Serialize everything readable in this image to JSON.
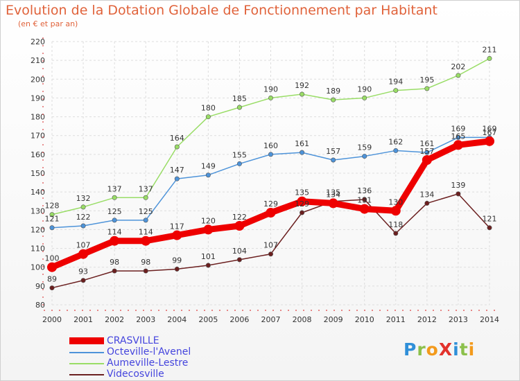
{
  "title": "Evolution de la Dotation Globale de Fonctionnement par Habitant",
  "subtitle": "(en € et par an)",
  "logo": "ProXiti",
  "chart_data": {
    "type": "line",
    "title": "Evolution de la Dotation Globale de Fonctionnement par Habitant",
    "subtitle": "(en € et par an)",
    "x": [
      "2000",
      "2001",
      "2002",
      "2003",
      "2004",
      "2005",
      "2006",
      "2007",
      "2008",
      "2009",
      "2010",
      "2011",
      "2012",
      "2013",
      "2014"
    ],
    "ylim": [
      80,
      220
    ],
    "yticks": [
      80,
      90,
      100,
      110,
      120,
      130,
      140,
      150,
      160,
      170,
      180,
      190,
      200,
      210,
      220
    ],
    "grid": true,
    "legend_position": "bottom-left",
    "series": [
      {
        "name": "CRASVILLE",
        "color": "#ee0000",
        "values": [
          100,
          107,
          114,
          114,
          117,
          120,
          122,
          129,
          135,
          134,
          131,
          130,
          157,
          165,
          167
        ]
      },
      {
        "name": "Octeville-l'Avenel",
        "color": "#4d93d9",
        "values": [
          121,
          122,
          125,
          125,
          147,
          149,
          155,
          160,
          161,
          157,
          159,
          162,
          161,
          169,
          169
        ]
      },
      {
        "name": "Aumeville-Lestre",
        "color": "#99dd66",
        "values": [
          128,
          132,
          137,
          137,
          164,
          180,
          185,
          190,
          192,
          189,
          190,
          194,
          195,
          202,
          211
        ]
      },
      {
        "name": "Videcosville",
        "color": "#6b1f1f",
        "values": [
          89,
          93,
          98,
          98,
          99,
          101,
          104,
          107,
          129,
          135,
          136,
          118,
          134,
          139,
          121
        ]
      }
    ]
  }
}
